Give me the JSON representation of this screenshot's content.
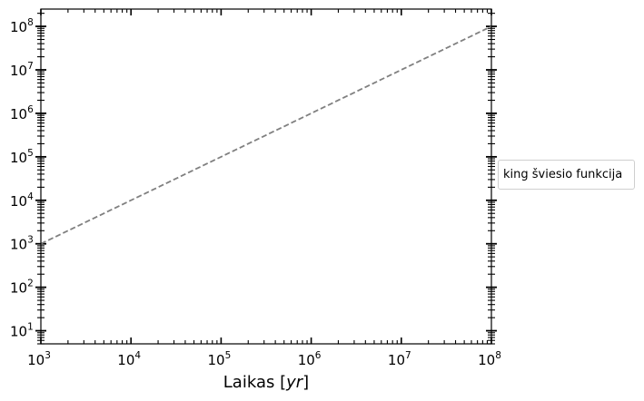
{
  "chart_data": {
    "type": "line",
    "x_scale": "log",
    "y_scale": "log",
    "xlim": [
      1000,
      100000000
    ],
    "ylim": [
      5,
      250000000
    ],
    "xlabel_main": "Laikas ",
    "xlabel_unit": "yr",
    "ylabel": "",
    "x_ticks": [
      {
        "base": "10",
        "exp": "3",
        "value": 1000
      },
      {
        "base": "10",
        "exp": "4",
        "value": 10000
      },
      {
        "base": "10",
        "exp": "5",
        "value": 100000
      },
      {
        "base": "10",
        "exp": "6",
        "value": 1000000
      },
      {
        "base": "10",
        "exp": "7",
        "value": 10000000
      },
      {
        "base": "10",
        "exp": "8",
        "value": 100000000
      }
    ],
    "y_ticks": [
      {
        "base": "10",
        "exp": "1",
        "value": 10
      },
      {
        "base": "10",
        "exp": "2",
        "value": 100
      },
      {
        "base": "10",
        "exp": "3",
        "value": 1000
      },
      {
        "base": "10",
        "exp": "4",
        "value": 10000
      },
      {
        "base": "10",
        "exp": "5",
        "value": 100000
      },
      {
        "base": "10",
        "exp": "6",
        "value": 1000000
      },
      {
        "base": "10",
        "exp": "7",
        "value": 10000000
      },
      {
        "base": "10",
        "exp": "8",
        "value": 100000000
      }
    ],
    "series": [
      {
        "name": "king šviesio funkcija",
        "color": "#808080",
        "line_style": "dashed",
        "x": [
          1000,
          100000000
        ],
        "y": [
          1000,
          100000000
        ]
      }
    ],
    "legend_placement": "right-outside",
    "grid": false
  }
}
